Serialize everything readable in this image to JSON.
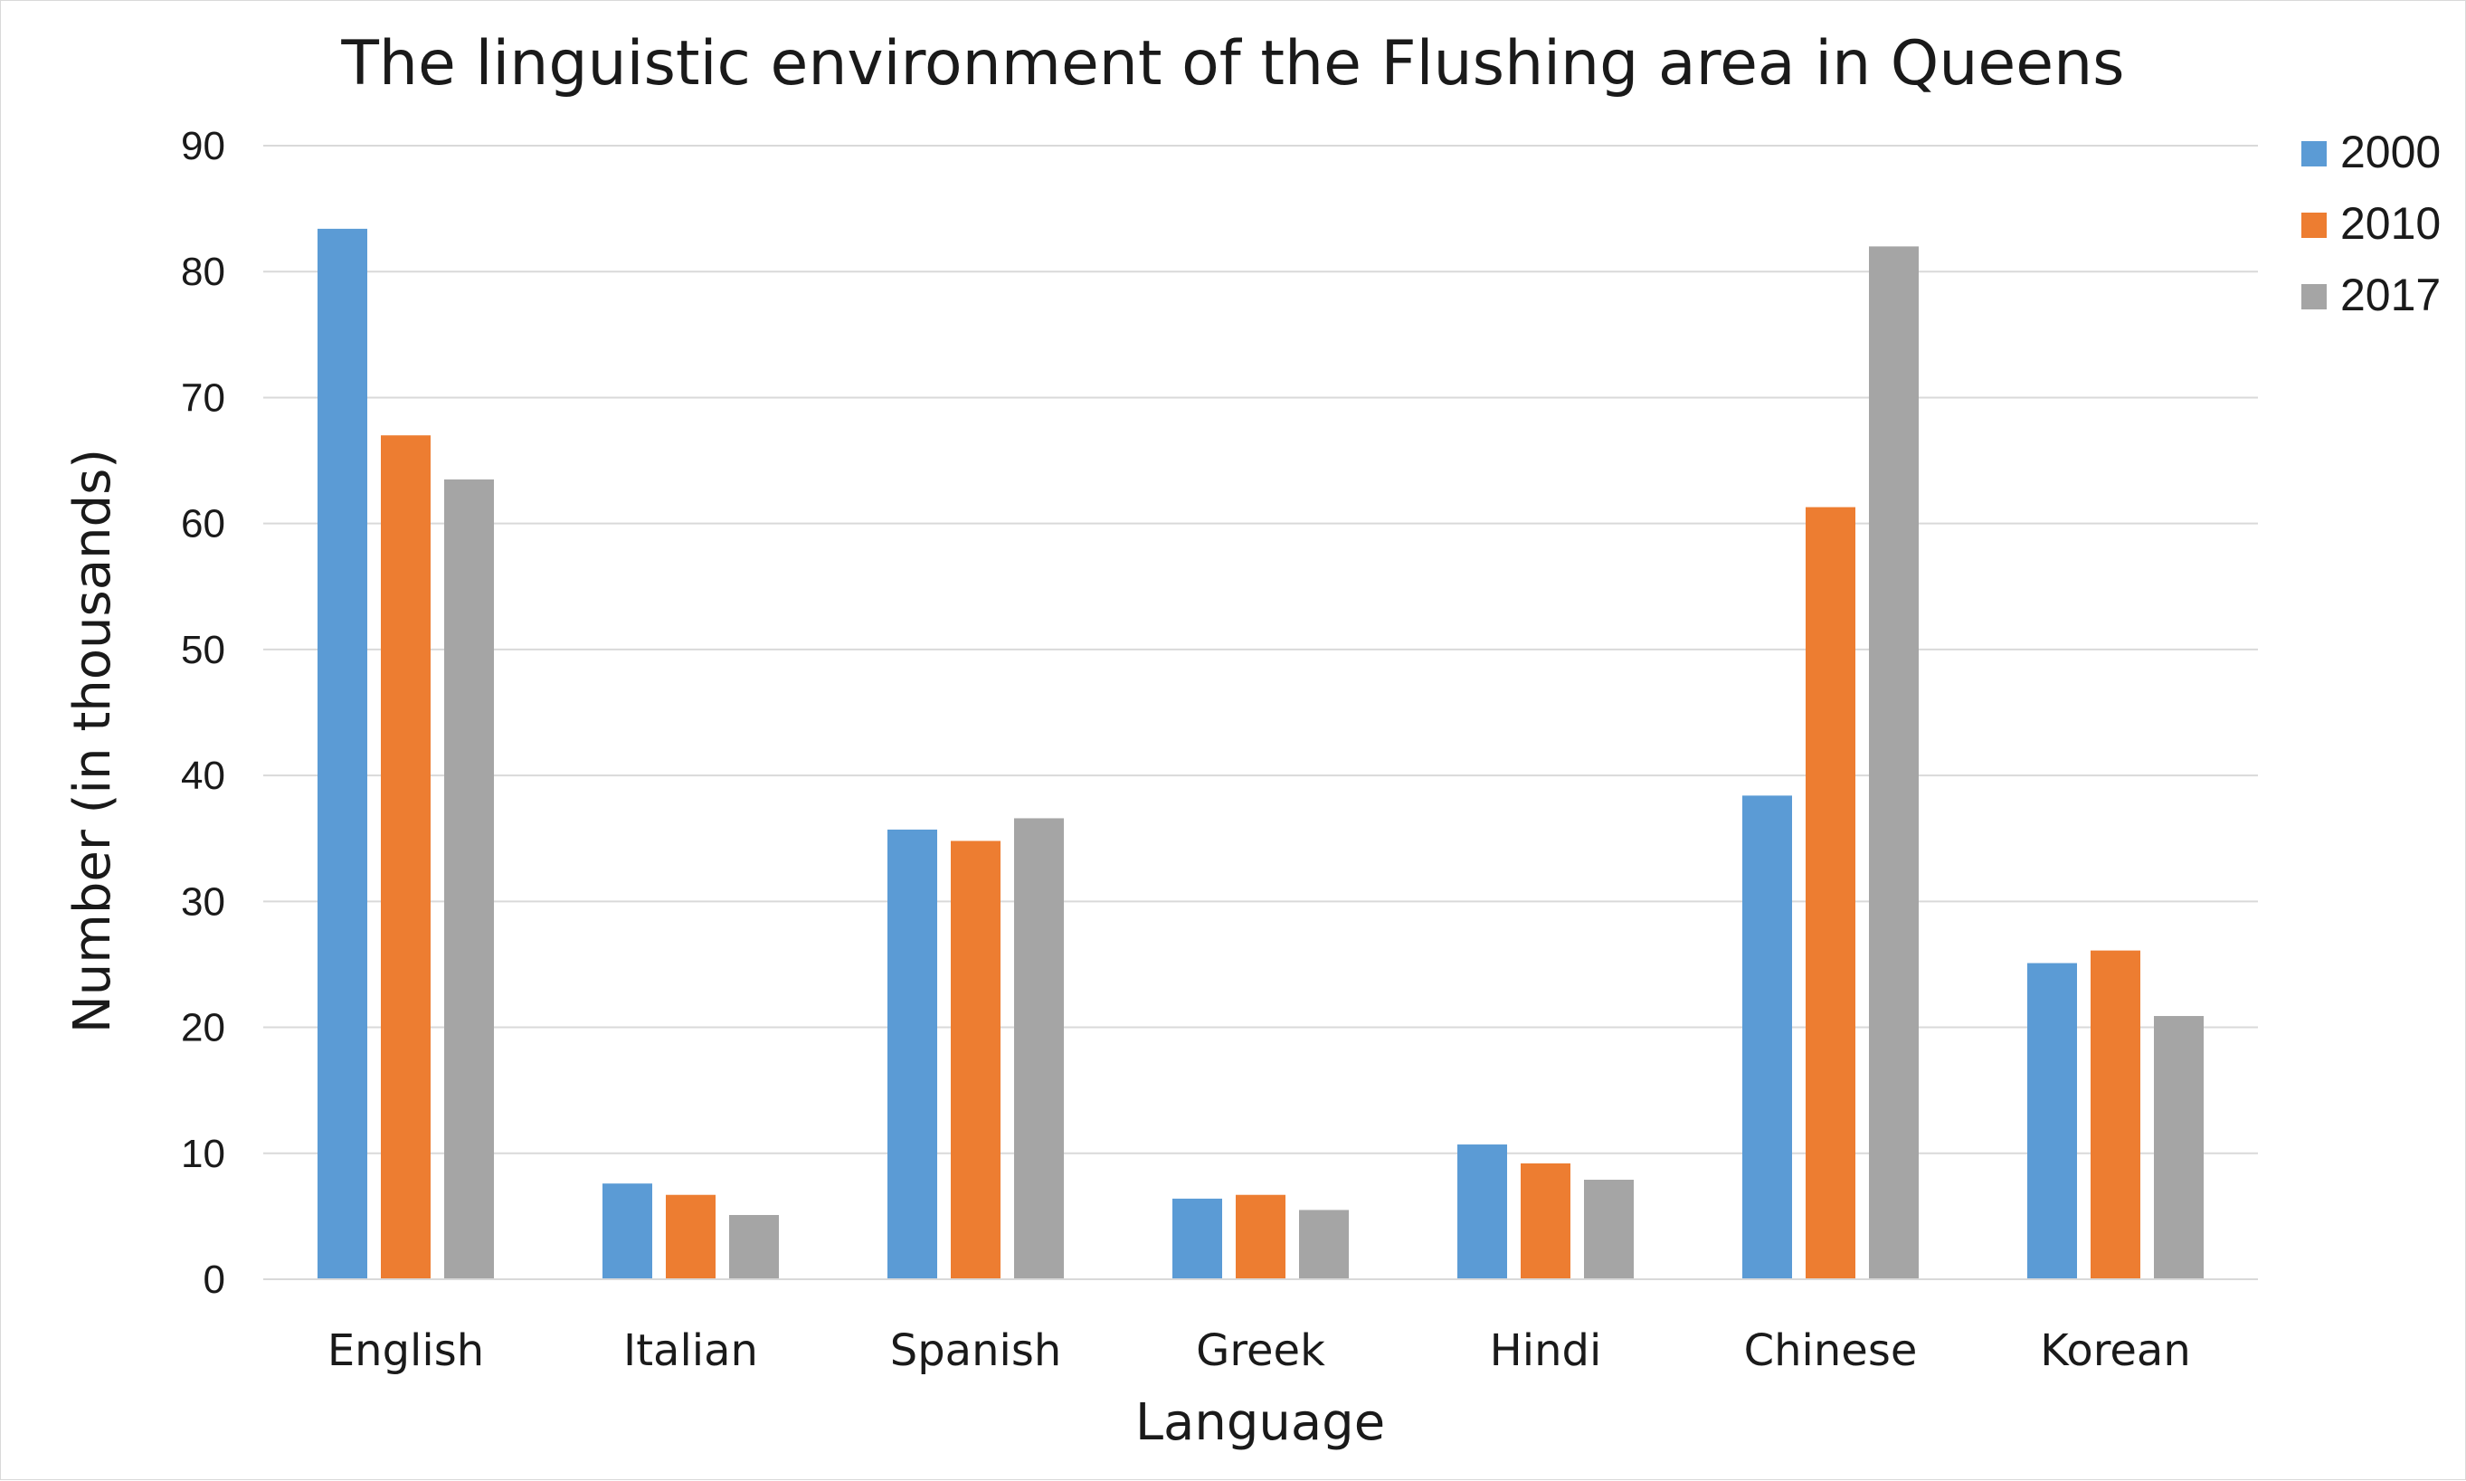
{
  "chart_data": {
    "type": "bar",
    "title": "The linguistic environment of the Flushing area in Queens",
    "xlabel": "Language",
    "ylabel": "Number (in thousands)",
    "ylim": [
      0,
      90
    ],
    "yticks": [
      0,
      10,
      20,
      30,
      40,
      50,
      60,
      70,
      80,
      90
    ],
    "grid": true,
    "legend_position": "right",
    "categories": [
      "English",
      "Italian",
      "Spanish",
      "Greek",
      "Hindi",
      "Chinese",
      "Korean"
    ],
    "series": [
      {
        "name": "2000",
        "color": "#5b9bd5",
        "values": [
          83.4,
          7.6,
          35.7,
          6.4,
          10.7,
          38.4,
          25.1
        ]
      },
      {
        "name": "2010",
        "color": "#ed7d31",
        "values": [
          67.0,
          6.7,
          34.8,
          6.7,
          9.2,
          61.3,
          26.1
        ]
      },
      {
        "name": "2017",
        "color": "#a5a5a5",
        "values": [
          63.5,
          5.1,
          36.6,
          5.5,
          7.9,
          82.0,
          20.9
        ]
      }
    ]
  }
}
